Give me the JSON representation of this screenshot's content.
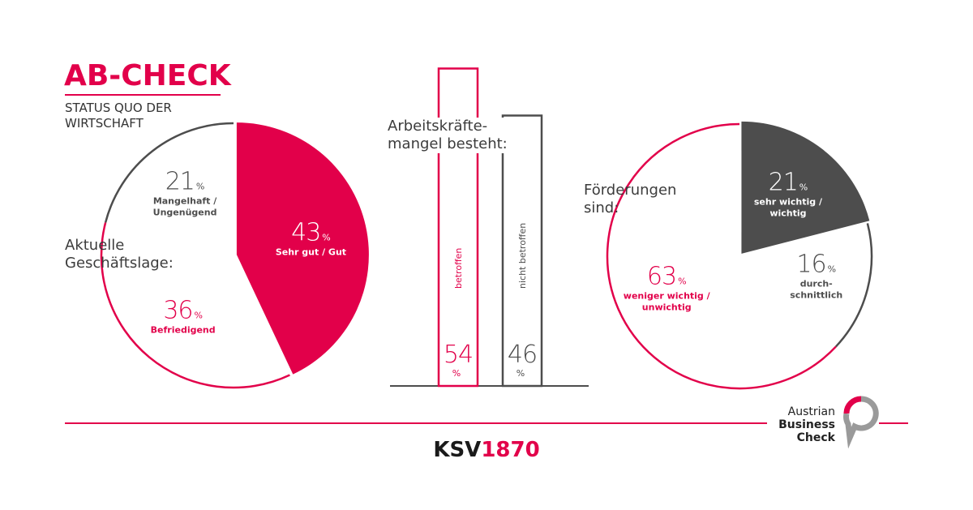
{
  "header": {
    "title": "AB-CHECK",
    "subtitle": "STATUS QUO DER\nWIRTSCHAFT"
  },
  "chart_data": [
    {
      "type": "pie",
      "title": "Aktuelle\nGeschäftslage:",
      "unit": "%",
      "categories": [
        "Sehr gut / Gut",
        "Befriedigend",
        "Mangelhaft /\nUngenügend"
      ],
      "values": [
        43,
        36,
        21
      ],
      "colors": [
        "#e2004a",
        "#e2004a",
        "#4d4d4d"
      ],
      "filled": [
        true,
        false,
        false
      ]
    },
    {
      "type": "bar",
      "title": "Arbeitskräfte-\nmangel besteht:",
      "unit": "%",
      "categories": [
        "betroffen",
        "nicht betroffen"
      ],
      "values": [
        54,
        46
      ],
      "colors": [
        "#e2004a",
        "#4d4d4d"
      ],
      "ylim": [
        0,
        60
      ]
    },
    {
      "type": "pie",
      "title": "Förderungen\nsind:",
      "unit": "%",
      "categories": [
        "sehr wichtig /\nwichtig",
        "durch-\nschnittlich",
        "weniger wichtig /\nunwichtig"
      ],
      "values": [
        21,
        16,
        63
      ],
      "colors": [
        "#4d4d4d",
        "#4d4d4d",
        "#e2004a"
      ],
      "filled": [
        true,
        false,
        false
      ]
    }
  ],
  "footer": {
    "brand": "KSV",
    "number": "1870"
  },
  "logo": {
    "lines": [
      "Austrian",
      "Business",
      "Check"
    ]
  }
}
